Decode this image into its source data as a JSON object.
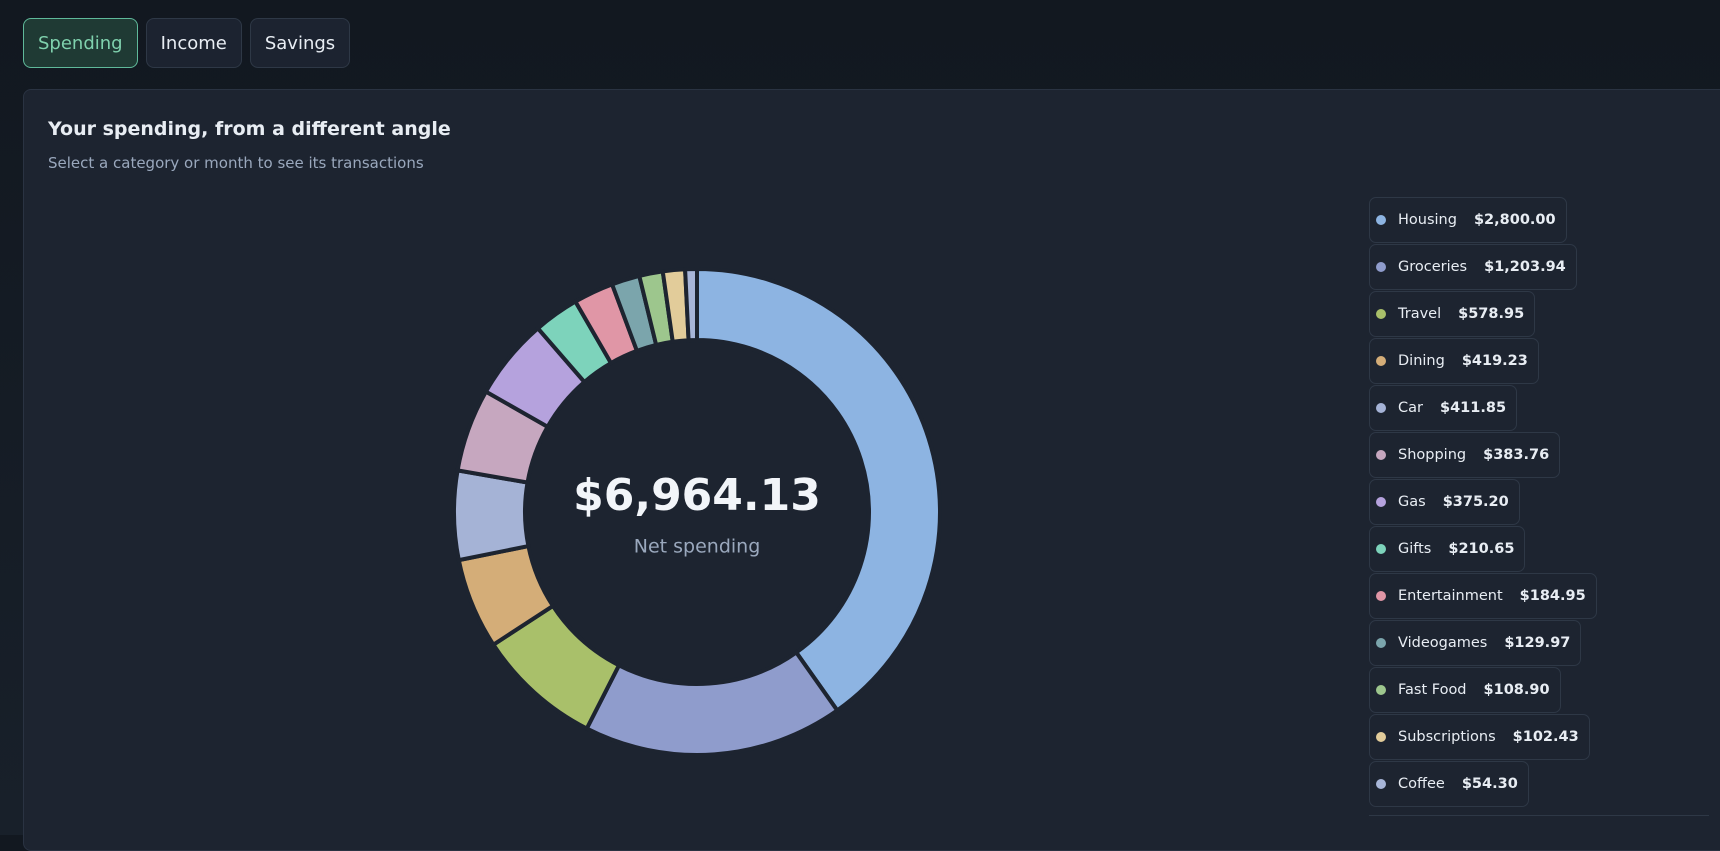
{
  "tabs": [
    "Spending",
    "Income",
    "Savings"
  ],
  "active_tab": 0,
  "panel": {
    "title": "Your spending, from a different angle",
    "subtitle": "Select a category or month to see its transactions"
  },
  "chart_data": {
    "type": "pie",
    "donut": true,
    "center_value": "$6,964.13",
    "center_label": "Net spending",
    "categories": [
      "Housing",
      "Groceries",
      "Travel",
      "Dining",
      "Car",
      "Shopping",
      "Gas",
      "Gifts",
      "Entertainment",
      "Videogames",
      "Fast Food",
      "Subscriptions",
      "Coffee"
    ],
    "values": [
      2800.0,
      1203.94,
      578.95,
      419.23,
      411.85,
      383.76,
      375.2,
      210.65,
      184.95,
      129.97,
      108.9,
      102.43,
      54.3
    ],
    "value_labels": [
      "$2,800.00",
      "$1,203.94",
      "$578.95",
      "$419.23",
      "$411.85",
      "$383.76",
      "$375.20",
      "$210.65",
      "$184.95",
      "$129.97",
      "$108.90",
      "$102.43",
      "$54.30"
    ],
    "colors": [
      "#8db4e2",
      "#8f9ccc",
      "#a9c06a",
      "#d4ad78",
      "#a5b3d6",
      "#c6a7bf",
      "#b5a2dd",
      "#7dd3bb",
      "#e096a6",
      "#7ba5ac",
      "#9dc68d",
      "#e2cc9a",
      "#a8b6d8"
    ]
  }
}
